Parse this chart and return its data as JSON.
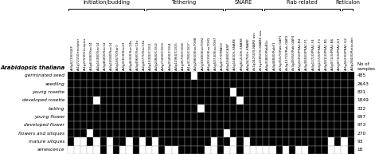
{
  "row_labels": [
    "germinated seed",
    "seedling",
    "young rosette",
    "developed rosette",
    "bolting",
    "young flower",
    "developed flower",
    "flowers and siliques",
    "mature siliques",
    "senescence"
  ],
  "row_counts": [
    485,
    2643,
    831,
    1849,
    332,
    697,
    973,
    270,
    93,
    18
  ],
  "col_labels": [
    "At3g52190/GEF",
    "At1g72150/receptor",
    "At1g22530/receptor",
    "At5g63080/Sec14",
    "At2g16380/Sec14",
    "At3g46450/Sec14",
    "At2g18180/Sec14",
    "At5g18570/Sar1",
    "At4g01610/Sec23",
    "At3g44340/Sec24a",
    "At3g49680/Sec13a",
    "At2g43770/Sec13b",
    "At4g16300/COG1",
    "At2g24840/COG2",
    "At4g73430/COG3",
    "At4g01400/COG4",
    "At4g14960/COG5",
    "At1g06700/COG6",
    "At1g31780/COG7",
    "At2g28650/Exo70H8",
    "At2g39380/Exo70H2",
    "At5g35150/Exo70H1",
    "At5g59730/Exo70H7",
    "At3g47770/MAG2",
    "At3g18480/CASP",
    "At5g16830/t-SNARE",
    "At5g61210/h-SNARE",
    "At4g04760/r-SNARE",
    "At1g04250/S-NARE ass.",
    "At1g22850/S-SNARE ass.",
    "At4g35860/RabB1c",
    "At3g48840/RabF1",
    "At5g35570/Rab GAP1",
    "At4g13720/Rab GAP2",
    "At3g49350/Rab GAP4",
    "At5g24350/PRA1.B4",
    "At3g38360/PRA1.F1",
    "At3g13710/PRA1.F4",
    "At3g13720/PRA1.F3",
    "At3g58110/PRA1.B1",
    "At5g07110/PRA1.B6",
    "At5g07110/PRA1.G1",
    "At5g56230/PRA1.G2",
    "At4g28430/Reticulon"
  ],
  "groups": [
    {
      "name": "Initiation/budding",
      "start": 0,
      "end": 12
    },
    {
      "name": "Tethering",
      "start": 12,
      "end": 24
    },
    {
      "name": "SNARE",
      "start": 24,
      "end": 30
    },
    {
      "name": "Rab related",
      "start": 30,
      "end": 42
    },
    {
      "name": "Reticulon",
      "start": 42,
      "end": 44
    }
  ],
  "matrix": [
    [
      1,
      1,
      1,
      1,
      1,
      1,
      1,
      1,
      1,
      1,
      1,
      1,
      1,
      1,
      1,
      1,
      1,
      1,
      1,
      0,
      1,
      1,
      1,
      1,
      1,
      1,
      1,
      1,
      1,
      1,
      1,
      1,
      1,
      1,
      1,
      1,
      1,
      1,
      1,
      1,
      1,
      1,
      1,
      1
    ],
    [
      1,
      1,
      1,
      1,
      1,
      1,
      1,
      1,
      1,
      1,
      1,
      1,
      1,
      1,
      1,
      1,
      1,
      1,
      1,
      1,
      1,
      1,
      1,
      1,
      1,
      1,
      1,
      1,
      1,
      1,
      1,
      1,
      1,
      1,
      1,
      1,
      1,
      1,
      1,
      1,
      1,
      1,
      1,
      1
    ],
    [
      1,
      1,
      1,
      1,
      1,
      1,
      1,
      1,
      1,
      1,
      1,
      1,
      1,
      1,
      1,
      1,
      1,
      1,
      1,
      1,
      1,
      1,
      1,
      1,
      1,
      0,
      1,
      1,
      1,
      1,
      1,
      1,
      1,
      1,
      1,
      1,
      1,
      1,
      1,
      1,
      1,
      1,
      1,
      1
    ],
    [
      1,
      1,
      1,
      1,
      0,
      1,
      1,
      1,
      1,
      1,
      1,
      1,
      1,
      1,
      1,
      1,
      1,
      1,
      1,
      1,
      1,
      1,
      1,
      1,
      1,
      1,
      0,
      1,
      1,
      1,
      1,
      1,
      1,
      1,
      1,
      1,
      1,
      1,
      1,
      1,
      1,
      1,
      1,
      1
    ],
    [
      1,
      1,
      1,
      1,
      1,
      1,
      1,
      1,
      1,
      1,
      1,
      1,
      1,
      1,
      1,
      1,
      1,
      1,
      1,
      1,
      0,
      1,
      1,
      1,
      1,
      1,
      1,
      1,
      1,
      1,
      1,
      1,
      1,
      1,
      1,
      1,
      1,
      1,
      1,
      1,
      1,
      1,
      1,
      1
    ],
    [
      1,
      1,
      1,
      1,
      1,
      1,
      1,
      1,
      1,
      1,
      1,
      1,
      1,
      1,
      1,
      1,
      1,
      1,
      1,
      1,
      1,
      1,
      1,
      1,
      1,
      1,
      1,
      1,
      1,
      1,
      1,
      1,
      1,
      1,
      1,
      1,
      1,
      1,
      1,
      1,
      1,
      1,
      1,
      1
    ],
    [
      1,
      1,
      1,
      1,
      1,
      1,
      1,
      1,
      1,
      1,
      1,
      1,
      1,
      1,
      1,
      1,
      1,
      1,
      1,
      1,
      1,
      1,
      1,
      1,
      1,
      1,
      1,
      1,
      1,
      1,
      1,
      1,
      1,
      1,
      1,
      1,
      1,
      1,
      1,
      1,
      1,
      1,
      1,
      1
    ],
    [
      1,
      1,
      1,
      0,
      1,
      1,
      1,
      1,
      1,
      1,
      1,
      1,
      1,
      1,
      1,
      1,
      1,
      1,
      1,
      1,
      1,
      1,
      1,
      1,
      0,
      1,
      1,
      1,
      1,
      1,
      1,
      1,
      1,
      1,
      1,
      1,
      1,
      1,
      1,
      1,
      1,
      1,
      1,
      1
    ],
    [
      1,
      0,
      0,
      1,
      0,
      1,
      0,
      1,
      1,
      0,
      1,
      0,
      1,
      0,
      1,
      1,
      1,
      1,
      1,
      1,
      1,
      1,
      0,
      1,
      1,
      0,
      1,
      0,
      1,
      1,
      1,
      1,
      1,
      1,
      1,
      1,
      1,
      1,
      1,
      1,
      0,
      1,
      0,
      1
    ],
    [
      0,
      0,
      0,
      0,
      0,
      1,
      0,
      1,
      0,
      0,
      1,
      0,
      0,
      0,
      1,
      0,
      0,
      1,
      1,
      1,
      1,
      0,
      0,
      1,
      0,
      0,
      1,
      0,
      0,
      0,
      0,
      0,
      1,
      0,
      1,
      0,
      0,
      1,
      1,
      1,
      0,
      0,
      0,
      1
    ]
  ],
  "ylabel": "Arabidopsis thaliana",
  "no_of_samples_label": "No of\nsamples",
  "background": "#ffffff",
  "black_color": "#000000",
  "white_color": "#ffffff",
  "grid_color": "#aaaaaa",
  "col_label_fontsize": 3.0,
  "row_label_fontsize": 4.2,
  "count_fontsize": 4.2,
  "group_fontsize": 4.8,
  "ylabel_fontsize": 5.0,
  "no_samples_fontsize": 4.0
}
